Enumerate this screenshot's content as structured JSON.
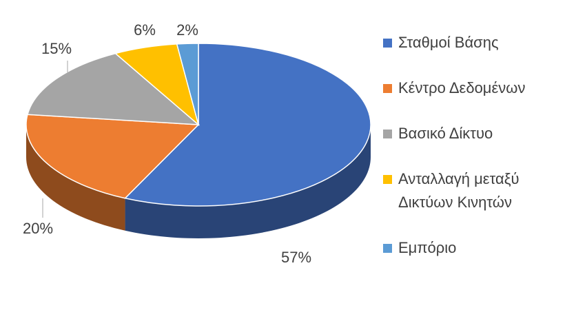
{
  "chart_data": {
    "type": "pie3d",
    "categories": [
      "Σταθμοί Βάσης",
      "Κέντρο Δεδομένων",
      "Βασικό Δίκτυο",
      "Ανταλλαγή μεταξύ Δικτύων Κινητών",
      "Εμπόριο"
    ],
    "values": [
      57,
      20,
      15,
      6,
      2
    ],
    "value_labels": [
      "57%",
      "20%",
      "15%",
      "6%",
      "2%"
    ],
    "colors": [
      "#4472c4",
      "#ed7d31",
      "#a5a5a5",
      "#ffc000",
      "#5b9bd5"
    ],
    "legend": "right"
  }
}
